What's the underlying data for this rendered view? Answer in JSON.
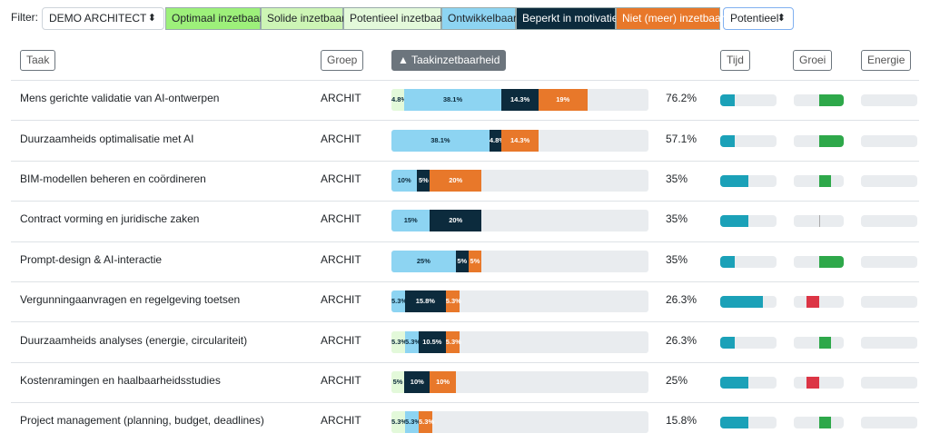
{
  "filter": {
    "label": "Filter:",
    "select": "DEMO ARCHITECT",
    "sort_select": "Potentieel",
    "legend": [
      {
        "name": "Optimaal inzetbaar",
        "color": "#9df07a"
      },
      {
        "name": "Solide inzetbaar",
        "color": "#cdf5b5"
      },
      {
        "name": "Potentieel inzetbaar",
        "color": "#e3f9da"
      },
      {
        "name": "Ontwikkelbaar",
        "color": "#8dd4f2"
      },
      {
        "name": "Beperkt in motivatie",
        "color": "#0c2b3d"
      },
      {
        "name": "Niet (meer) inzetbaar",
        "color": "#e8782a"
      }
    ]
  },
  "table": {
    "headers": [
      "Taak",
      "Groep",
      "▲ Taakinzetbaarheid",
      "Tijd",
      "Groei",
      "Energie"
    ],
    "tijd_color": "#1ba1b8",
    "groei_up_color": "#2ea84a",
    "groei_down_color": "#dc3545",
    "rows": [
      {
        "task": "Mens gerichte validatie van AI-ontwerpen",
        "group": "ARCHIT",
        "values": [
          null,
          null,
          4.8,
          38.1,
          14.3,
          19
        ],
        "value_labels": [
          null,
          null,
          "4.8%",
          "38.1%",
          "14.3%",
          "19%"
        ],
        "total": 76.2,
        "total_label": "76.2%",
        "tijd": 25,
        "groei": 100,
        "energie": 0
      },
      {
        "task": "Duurzaamheids optimalisatie met AI",
        "group": "ARCHIT",
        "values": [
          null,
          null,
          null,
          38.1,
          4.8,
          14.3
        ],
        "value_labels": [
          null,
          null,
          null,
          "38.1%",
          "4.8%",
          "14.3%"
        ],
        "total": 57.1,
        "total_label": "57.1%",
        "tijd": 25,
        "groei": 100,
        "energie": 0
      },
      {
        "task": "BIM-modellen beheren en coördineren",
        "group": "ARCHIT",
        "values": [
          null,
          null,
          null,
          10,
          5,
          20
        ],
        "value_labels": [
          null,
          null,
          null,
          "10%",
          "5%",
          "20%"
        ],
        "total": 35,
        "total_label": "35%",
        "tijd": 50,
        "groei": 50,
        "energie": 0
      },
      {
        "task": "Contract vorming en juridische zaken",
        "group": "ARCHIT",
        "values": [
          null,
          null,
          null,
          15,
          20,
          null
        ],
        "value_labels": [
          null,
          null,
          null,
          "15%",
          "20%",
          null
        ],
        "total": 35,
        "total_label": "35%",
        "tijd": 50,
        "groei": 0,
        "energie": 0
      },
      {
        "task": "Prompt-design & AI-interactie",
        "group": "ARCHIT",
        "values": [
          null,
          null,
          null,
          25,
          5,
          5
        ],
        "value_labels": [
          null,
          null,
          null,
          "25%",
          "5%",
          "5%"
        ],
        "total": 35,
        "total_label": "35%",
        "tijd": 25,
        "groei": 100,
        "energie": 0
      },
      {
        "task": "Vergunningaanvragen en regelgeving toetsen",
        "group": "ARCHIT",
        "values": [
          null,
          null,
          null,
          5.3,
          15.8,
          5.3
        ],
        "value_labels": [
          null,
          null,
          null,
          "5.3%",
          "15.8%",
          "5.3%"
        ],
        "total": 26.3,
        "total_label": "26.3%",
        "tijd": 75,
        "groei": -50,
        "energie": 0
      },
      {
        "task": "Duurzaamheids analyses (energie, circulariteit)",
        "group": "ARCHIT",
        "values": [
          null,
          null,
          5.3,
          5.3,
          10.5,
          5.3
        ],
        "value_labels": [
          null,
          null,
          "5.3%",
          "5.3%",
          "10.5%",
          "5.3%"
        ],
        "total": 26.3,
        "total_label": "26.3%",
        "tijd": 25,
        "groei": 50,
        "energie": 0
      },
      {
        "task": "Kostenramingen en haalbaarheidsstudies",
        "group": "ARCHIT",
        "values": [
          null,
          null,
          5,
          null,
          10,
          10
        ],
        "value_labels": [
          null,
          null,
          "5%",
          null,
          "10%",
          "10%"
        ],
        "total": 25,
        "total_label": "25%",
        "tijd": 50,
        "groei": -50,
        "energie": 0
      },
      {
        "task": "Project management (planning, budget, deadlines)",
        "group": "ARCHIT",
        "values": [
          null,
          null,
          5.3,
          5.3,
          null,
          5.3
        ],
        "value_labels": [
          null,
          null,
          "5.3%",
          "5.3%",
          null,
          "5.3%"
        ],
        "total": 15.8,
        "total_label": "15.8%",
        "tijd": 50,
        "groei": 50,
        "energie": 0
      }
    ]
  }
}
